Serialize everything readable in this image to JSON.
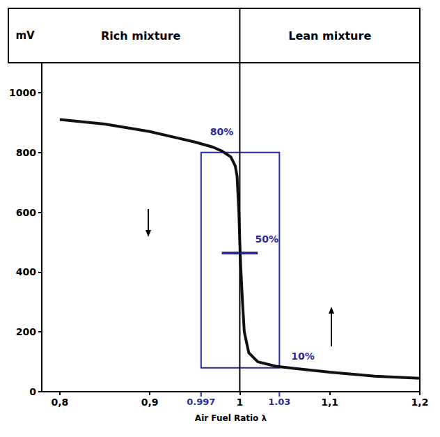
{
  "chart_data": {
    "type": "line",
    "header": {
      "unit": "mV",
      "left": "Rich mixture",
      "right": "Lean mixture"
    },
    "x_label": "Air Fuel Ratio λ",
    "x": [
      0.8,
      0.85,
      0.9,
      0.95,
      0.97,
      0.98,
      0.99,
      0.995,
      0.997,
      0.999,
      1.0,
      1.001,
      1.003,
      1.005,
      1.01,
      1.02,
      1.04,
      1.06,
      1.1,
      1.15,
      1.2
    ],
    "values": [
      910,
      895,
      870,
      835,
      818,
      805,
      785,
      755,
      720,
      600,
      500,
      420,
      300,
      200,
      130,
      100,
      85,
      78,
      65,
      52,
      45
    ],
    "color": "#111111",
    "xlim": [
      0.78,
      1.2
    ],
    "xticks": [
      {
        "value": 0.8,
        "label": "0,8"
      },
      {
        "value": 0.9,
        "label": "0,9"
      },
      1,
      {
        "value": 1.1,
        "label": "1,1"
      },
      {
        "value": 1.2,
        "label": "1,2"
      }
    ],
    "ylim": [
      0,
      1100
    ],
    "yticks": [
      0,
      200,
      400,
      600,
      800,
      1000
    ],
    "grid": false,
    "divider": 1,
    "window": {
      "x": [
        0.957,
        1.044
      ],
      "y": [
        80,
        800
      ],
      "x_labels": [
        "0.997",
        "1.03"
      ],
      "color": "#2a2a9c"
    },
    "midline": {
      "x": [
        0.98,
        1.02
      ],
      "y": 465
    },
    "annotations": [
      {
        "text": "80%",
        "x": 0.98,
        "y": 870
      },
      {
        "text": "50%",
        "x": 1.03,
        "y": 510
      },
      {
        "text": "10%",
        "x": 1.07,
        "y": 120
      }
    ]
  }
}
